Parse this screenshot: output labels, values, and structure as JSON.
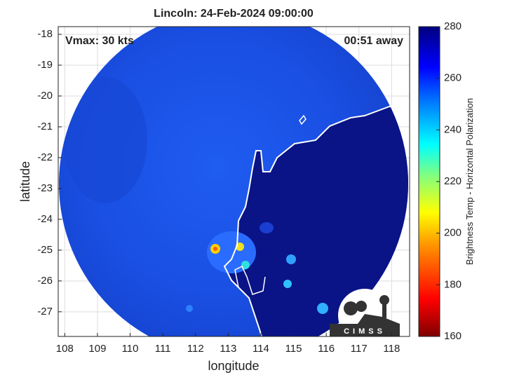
{
  "title": "Lincoln: 24-Feb-2024 09:00:00",
  "annotations": {
    "vmax": "Vmax: 30 kts",
    "time_away": "00:51 away"
  },
  "map": {
    "xlabel": "longitude",
    "ylabel": "latitude",
    "xlim": [
      107.8,
      118.55
    ],
    "ylim": [
      -27.8,
      -17.75
    ],
    "xticks": [
      108,
      109,
      110,
      111,
      112,
      113,
      114,
      115,
      116,
      117,
      118
    ],
    "yticks": [
      -18,
      -19,
      -20,
      -21,
      -22,
      -23,
      -24,
      -25,
      -26,
      -27
    ],
    "grid": true
  },
  "colorbar": {
    "label": "Brightness Temp - Horizontal Polarization",
    "lim": [
      160,
      280
    ],
    "ticks": [
      160,
      180,
      200,
      220,
      240,
      260,
      280
    ]
  },
  "logo": {
    "text": "CIMSS"
  }
}
